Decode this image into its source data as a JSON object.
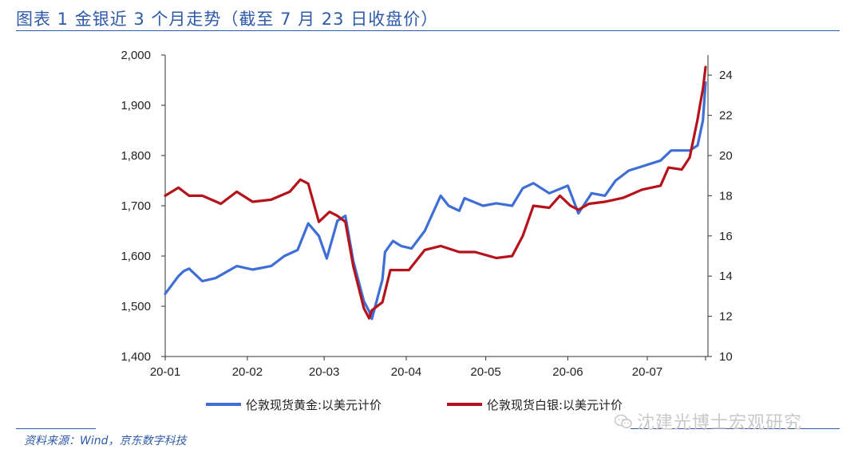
{
  "title": "图表 1  金银近 3 个月走势（截至 7 月 23 日收盘价）",
  "source": "资料来源：Wind，京东数字科技",
  "watermark": "沈建光博士宏观研究",
  "watermark_icon": "wechat-icon",
  "colors": {
    "gold": "#3f6fd6",
    "silver": "#b5121b",
    "accent": "#2e5aa8"
  },
  "chart_data": {
    "type": "line",
    "x_ticks": [
      "20-01",
      "20-02",
      "20-03",
      "20-04",
      "20-05",
      "20-06",
      "20-07"
    ],
    "y_left": {
      "min": 1400,
      "max": 2000,
      "ticks": [
        "1,400",
        "1,500",
        "1,600",
        "1,700",
        "1,800",
        "1,900",
        "2,000"
      ]
    },
    "y_right": {
      "min": 10,
      "max": 25,
      "ticks": [
        "10",
        "12",
        "14",
        "16",
        "18",
        "20",
        "22",
        "24"
      ]
    },
    "legend_position": "bottom",
    "series": [
      {
        "name": "伦敦现货黄金:以美元计价",
        "axis": "left",
        "x": [
          "2020-01-01",
          "2020-01-06",
          "2020-01-08",
          "2020-01-10",
          "2020-01-15",
          "2020-01-20",
          "2020-01-28",
          "2020-02-03",
          "2020-02-10",
          "2020-02-15",
          "2020-02-20",
          "2020-02-24",
          "2020-02-28",
          "2020-03-02",
          "2020-03-06",
          "2020-03-09",
          "2020-03-12",
          "2020-03-16",
          "2020-03-18",
          "2020-03-19",
          "2020-03-23",
          "2020-03-24",
          "2020-03-27",
          "2020-03-30",
          "2020-04-03",
          "2020-04-08",
          "2020-04-14",
          "2020-04-17",
          "2020-04-21",
          "2020-04-23",
          "2020-04-30",
          "2020-05-05",
          "2020-05-11",
          "2020-05-15",
          "2020-05-19",
          "2020-05-25",
          "2020-06-01",
          "2020-06-05",
          "2020-06-10",
          "2020-06-15",
          "2020-06-19",
          "2020-06-24",
          "2020-06-30",
          "2020-07-06",
          "2020-07-10",
          "2020-07-14",
          "2020-07-17",
          "2020-07-20",
          "2020-07-21",
          "2020-07-22",
          "2020-07-23"
        ],
        "values": [
          1525,
          1560,
          1570,
          1575,
          1550,
          1556,
          1580,
          1573,
          1580,
          1600,
          1612,
          1665,
          1640,
          1595,
          1670,
          1680,
          1590,
          1510,
          1490,
          1475,
          1553,
          1608,
          1630,
          1620,
          1615,
          1650,
          1720,
          1700,
          1690,
          1715,
          1700,
          1705,
          1700,
          1735,
          1745,
          1725,
          1740,
          1685,
          1725,
          1720,
          1750,
          1770,
          1780,
          1790,
          1810,
          1810,
          1810,
          1820,
          1845,
          1870,
          1945
        ]
      },
      {
        "name": "伦敦现货白银:以美元计价",
        "axis": "right",
        "x": [
          "2020-01-01",
          "2020-01-06",
          "2020-01-10",
          "2020-01-15",
          "2020-01-22",
          "2020-01-28",
          "2020-02-03",
          "2020-02-10",
          "2020-02-17",
          "2020-02-21",
          "2020-02-24",
          "2020-02-28",
          "2020-03-03",
          "2020-03-06",
          "2020-03-09",
          "2020-03-12",
          "2020-03-16",
          "2020-03-18",
          "2020-03-19",
          "2020-03-23",
          "2020-03-26",
          "2020-04-02",
          "2020-04-08",
          "2020-04-14",
          "2020-04-21",
          "2020-04-27",
          "2020-05-05",
          "2020-05-11",
          "2020-05-15",
          "2020-05-19",
          "2020-05-25",
          "2020-05-29",
          "2020-06-02",
          "2020-06-05",
          "2020-06-09",
          "2020-06-15",
          "2020-06-22",
          "2020-06-29",
          "2020-07-06",
          "2020-07-09",
          "2020-07-14",
          "2020-07-17",
          "2020-07-20",
          "2020-07-21",
          "2020-07-22",
          "2020-07-23"
        ],
        "values": [
          18.0,
          18.4,
          18.0,
          18.0,
          17.6,
          18.2,
          17.7,
          17.8,
          18.2,
          18.8,
          18.6,
          16.7,
          17.2,
          17.0,
          16.7,
          14.5,
          12.4,
          11.9,
          12.3,
          12.7,
          14.3,
          14.3,
          15.3,
          15.5,
          15.2,
          15.2,
          14.9,
          15.0,
          16.0,
          17.5,
          17.4,
          18.0,
          17.5,
          17.3,
          17.6,
          17.7,
          17.9,
          18.3,
          18.5,
          19.4,
          19.3,
          19.9,
          21.8,
          22.6,
          23.3,
          24.4
        ]
      }
    ]
  }
}
